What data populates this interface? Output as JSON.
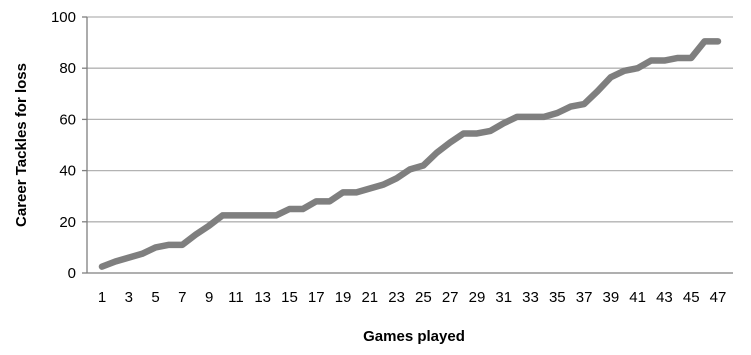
{
  "chart_data": {
    "type": "line",
    "xlabel": "Games played",
    "ylabel": "Career Tackles for loss",
    "ylim": [
      0,
      100
    ],
    "yticks": [
      0,
      20,
      40,
      60,
      80,
      100
    ],
    "xlim": [
      1,
      47
    ],
    "xtick_labels": [
      "1",
      "3",
      "5",
      "7",
      "9",
      "11",
      "13",
      "15",
      "17",
      "19",
      "21",
      "23",
      "25",
      "27",
      "29",
      "31",
      "33",
      "35",
      "37",
      "39",
      "41",
      "43",
      "45",
      "47"
    ],
    "grid": "horizontal",
    "line_color": "#7f7f7f",
    "x": [
      1,
      2,
      3,
      4,
      5,
      6,
      7,
      8,
      9,
      10,
      11,
      12,
      13,
      14,
      15,
      16,
      17,
      18,
      19,
      20,
      21,
      22,
      23,
      24,
      25,
      26,
      27,
      28,
      29,
      30,
      31,
      32,
      33,
      34,
      35,
      36,
      37,
      38,
      39,
      40,
      41,
      42,
      43,
      44,
      45,
      46,
      47
    ],
    "series": [
      {
        "values": [
          2.5,
          4.5,
          6,
          7.5,
          10,
          11,
          11,
          15,
          18.5,
          22.5,
          22.5,
          22.5,
          22.5,
          22.5,
          25,
          25,
          28,
          28,
          31.5,
          31.5,
          33,
          34.5,
          37,
          40.5,
          42,
          47,
          51,
          54.5,
          54.5,
          55.5,
          58.5,
          61,
          61,
          61,
          62.5,
          65,
          66,
          71,
          76.5,
          79,
          80,
          83,
          83,
          84,
          84,
          90.5,
          90.5
        ]
      }
    ]
  }
}
